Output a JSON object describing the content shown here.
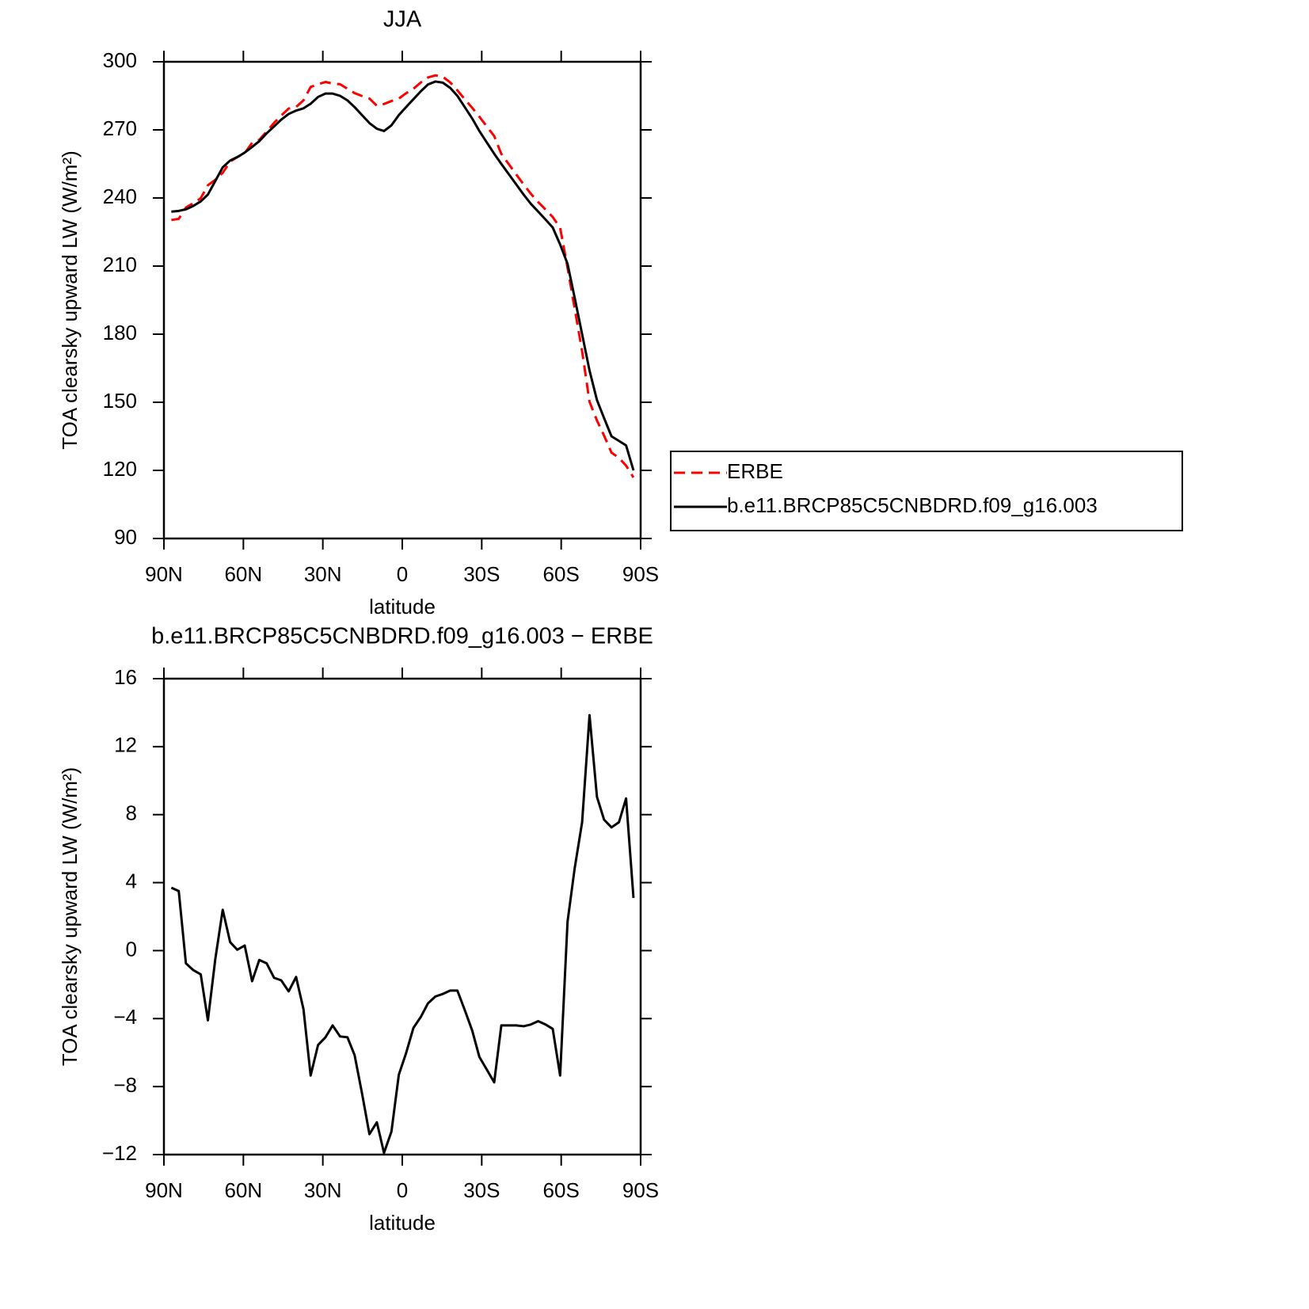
{
  "chart_data": [
    {
      "type": "line",
      "title": "JJA",
      "xlabel": "latitude",
      "ylabel": "TOA clearsky upward LW (W/m²)",
      "x": [
        87.2,
        84.4,
        81.7,
        78.9,
        76.1,
        73.4,
        70.6,
        67.8,
        65.0,
        62.3,
        59.5,
        56.7,
        54.0,
        51.2,
        48.4,
        45.7,
        42.9,
        40.1,
        37.3,
        34.6,
        31.8,
        29.0,
        26.3,
        23.5,
        20.7,
        18.0,
        15.2,
        12.4,
        9.6,
        6.9,
        4.1,
        1.3,
        -1.4,
        -4.2,
        -7.0,
        -9.7,
        -12.5,
        -15.3,
        -18.1,
        -20.8,
        -23.6,
        -26.4,
        -29.1,
        -31.9,
        -34.7,
        -37.4,
        -40.2,
        -43.0,
        -45.8,
        -48.5,
        -51.3,
        -54.1,
        -56.8,
        -59.6,
        -62.4,
        -65.1,
        -67.9,
        -70.7,
        -73.5,
        -76.2,
        -79.0,
        -81.8,
        -84.5,
        -87.3
      ],
      "xlim": [
        90,
        -90
      ],
      "xticks": [
        {
          "value": 90,
          "label": "90N"
        },
        {
          "value": 60,
          "label": "60N"
        },
        {
          "value": 30,
          "label": "30N"
        },
        0,
        {
          "value": -30,
          "label": "30S"
        },
        {
          "value": -60,
          "label": "60S"
        },
        {
          "value": -90,
          "label": "90S"
        }
      ],
      "ylim": [
        90,
        300
      ],
      "yticks": [
        90,
        120,
        150,
        180,
        210,
        240,
        270,
        300
      ],
      "legend": "right",
      "series": [
        {
          "name": "ERBE",
          "color": "#ff0000",
          "linestyle": "dashed",
          "values": [
            230.3,
            230.8,
            235.8,
            237.7,
            239.9,
            245.6,
            248,
            251.1,
            256,
            258,
            259.7,
            264.3,
            265.6,
            269.3,
            273.1,
            276.3,
            279.4,
            280.1,
            283,
            288.9,
            290.1,
            291.1,
            290.4,
            290.1,
            288.1,
            286.2,
            284.9,
            283.8,
            280.6,
            281.4,
            282.7,
            283.8,
            286.1,
            288.1,
            290.9,
            293.1,
            294,
            293.4,
            290.9,
            287.4,
            283.5,
            279.7,
            275.8,
            271.5,
            267.3,
            259.4,
            254.9,
            250.4,
            246,
            241.9,
            238.2,
            234.9,
            231.6,
            226.9,
            209.3,
            191.2,
            172.5,
            150.2,
            142,
            135.3,
            127.8,
            125.5,
            122.1,
            116.9
          ]
        },
        {
          "name": "b.e11.BRCP85C5CNBDRD.f09_g16.003",
          "color": "#000000",
          "linestyle": "solid",
          "values": [
            234,
            234.3,
            235,
            236.5,
            238.5,
            241.5,
            247.5,
            253.5,
            256.5,
            258,
            260,
            262.5,
            265,
            268.5,
            271.5,
            274.5,
            277,
            278.5,
            279.5,
            281.5,
            284.5,
            286,
            286,
            285,
            283,
            280,
            276.5,
            273,
            270.5,
            269.5,
            272,
            276.5,
            280,
            283.5,
            287,
            290,
            291.3,
            290.8,
            288.5,
            285,
            280,
            275,
            269.5,
            264.5,
            259.5,
            255,
            250.5,
            246,
            241.5,
            237.5,
            234,
            230.5,
            227,
            219.5,
            211,
            196,
            180,
            164,
            151,
            143,
            135,
            133,
            131,
            120
          ]
        }
      ]
    },
    {
      "type": "line",
      "title": "b.e11.BRCP85C5CNBDRD.f09_g16.003 − ERBE",
      "xlabel": "latitude",
      "ylabel": "TOA clearsky upward LW (W/m²)",
      "x": [
        87.2,
        84.4,
        81.7,
        78.9,
        76.1,
        73.4,
        70.6,
        67.8,
        65.0,
        62.3,
        59.5,
        56.7,
        54.0,
        51.2,
        48.4,
        45.7,
        42.9,
        40.1,
        37.3,
        34.6,
        31.8,
        29.0,
        26.3,
        23.5,
        20.7,
        18.0,
        15.2,
        12.4,
        9.6,
        6.9,
        4.1,
        1.3,
        -1.4,
        -4.2,
        -7.0,
        -9.7,
        -12.5,
        -15.3,
        -18.1,
        -20.8,
        -23.6,
        -26.4,
        -29.1,
        -31.9,
        -34.7,
        -37.4,
        -40.2,
        -43.0,
        -45.8,
        -48.5,
        -51.3,
        -54.1,
        -56.8,
        -59.6,
        -62.4,
        -65.1,
        -67.9,
        -70.7,
        -73.5,
        -76.2,
        -79.0,
        -81.8,
        -84.5,
        -87.3
      ],
      "xlim": [
        90,
        -90
      ],
      "xticks": [
        {
          "value": 90,
          "label": "90N"
        },
        {
          "value": 60,
          "label": "60N"
        },
        {
          "value": 30,
          "label": "30N"
        },
        0,
        {
          "value": -30,
          "label": "30S"
        },
        {
          "value": -60,
          "label": "60S"
        },
        {
          "value": -90,
          "label": "90S"
        }
      ],
      "ylim": [
        -12,
        16
      ],
      "yticks": [
        {
          "value": -12,
          "label": "−12"
        },
        {
          "value": -8,
          "label": "−8"
        },
        {
          "value": -4,
          "label": "−4"
        },
        0,
        4,
        8,
        12,
        16
      ],
      "color": "#000000",
      "values": [
        3.7,
        3.5,
        -0.75,
        -1.15,
        -1.4,
        -4.1,
        -0.5,
        2.4,
        0.5,
        0.05,
        0.3,
        -1.8,
        -0.55,
        -0.75,
        -1.6,
        -1.75,
        -2.4,
        -1.55,
        -3.45,
        -7.35,
        -5.55,
        -5.1,
        -4.4,
        -5.05,
        -5.1,
        -6.15,
        -8.4,
        -10.8,
        -10.1,
        -11.9,
        -10.65,
        -7.3,
        -6.05,
        -4.55,
        -3.9,
        -3.1,
        -2.7,
        -2.55,
        -2.35,
        -2.35,
        -3.5,
        -4.7,
        -6.25,
        -7.0,
        -7.75,
        -4.4,
        -4.4,
        -4.4,
        -4.45,
        -4.35,
        -4.15,
        -4.35,
        -4.6,
        -7.35,
        1.7,
        4.85,
        7.55,
        13.85,
        9.05,
        7.7,
        7.25,
        7.55,
        8.95,
        3.1
      ]
    }
  ]
}
